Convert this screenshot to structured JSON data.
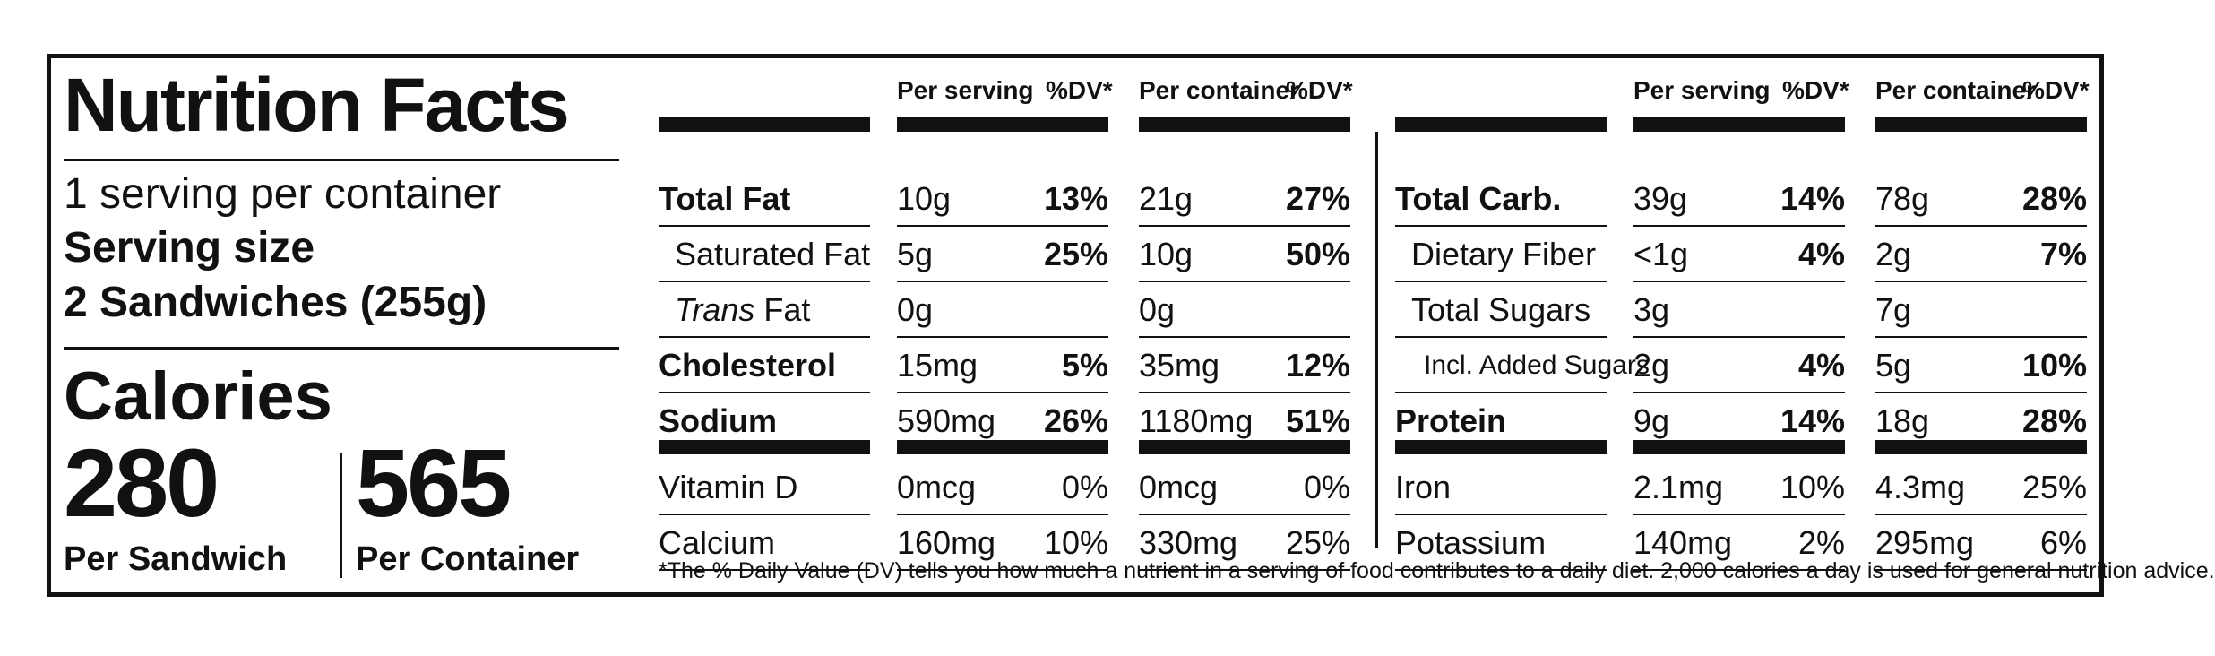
{
  "panel": {
    "title": "Nutrition Facts",
    "servings_per_container": "1 serving per container",
    "serving_size_label": "Serving size",
    "serving_size_value": "2 Sandwiches (255g)",
    "calories_label": "Calories",
    "calories_per_sandwich": "280",
    "per_sandwich_label": "Per Sandwich",
    "calories_per_container": "565",
    "per_container_label": "Per Container"
  },
  "headers": {
    "per_serving": "Per serving",
    "per_container": "Per container",
    "dv": "%DV*"
  },
  "left_table": [
    {
      "name": "Total Fat",
      "style": "bold",
      "serv": "10g",
      "serv_dv": "13%",
      "cont": "21g",
      "cont_dv": "27%"
    },
    {
      "name": "Saturated Fat",
      "style": "indent",
      "serv": "5g",
      "serv_dv": "25%",
      "cont": "10g",
      "cont_dv": "50%"
    },
    {
      "name_italic": "Trans",
      "name": "Fat",
      "style": "indent",
      "serv": "0g",
      "serv_dv": "",
      "cont": "0g",
      "cont_dv": ""
    },
    {
      "name": "Cholesterol",
      "style": "bold",
      "serv": "15mg",
      "serv_dv": "5%",
      "cont": "35mg",
      "cont_dv": "12%"
    },
    {
      "name": "Sodium",
      "style": "bold",
      "serv": "590mg",
      "serv_dv": "26%",
      "cont": "1180mg",
      "cont_dv": "51%"
    },
    {
      "name": "Vitamin D",
      "style": "plain",
      "serv": "0mcg",
      "serv_dv": "0%",
      "cont": "0mcg",
      "cont_dv": "0%"
    },
    {
      "name": "Calcium",
      "style": "plain",
      "serv": "160mg",
      "serv_dv": "10%",
      "cont": "330mg",
      "cont_dv": "25%"
    }
  ],
  "right_table": [
    {
      "name": "Total Carb.",
      "style": "bold",
      "serv": "39g",
      "serv_dv": "14%",
      "cont": "78g",
      "cont_dv": "28%"
    },
    {
      "name": "Dietary Fiber",
      "style": "indent",
      "serv": "<1g",
      "serv_dv": "4%",
      "cont": "2g",
      "cont_dv": "7%"
    },
    {
      "name": "Total Sugars",
      "style": "indent",
      "serv": "3g",
      "serv_dv": "",
      "cont": "7g",
      "cont_dv": ""
    },
    {
      "name": "Incl. Added Sugars",
      "style": "indent2",
      "serv": "2g",
      "serv_dv": "4%",
      "cont": "5g",
      "cont_dv": "10%"
    },
    {
      "name": "Protein",
      "style": "bold",
      "serv": "9g",
      "serv_dv": "14%",
      "cont": "18g",
      "cont_dv": "28%"
    },
    {
      "name": "Iron",
      "style": "plain",
      "serv": "2.1mg",
      "serv_dv": "10%",
      "cont": "4.3mg",
      "cont_dv": "25%"
    },
    {
      "name": "Potassium",
      "style": "plain",
      "serv": "140mg",
      "serv_dv": "2%",
      "cont": "295mg",
      "cont_dv": "6%"
    }
  ],
  "footnote": "*The % Daily Value (DV) tells you how much a nutrient in a serving of food contributes to a daily diet. 2,000 calories a day is used for general nutrition advice."
}
